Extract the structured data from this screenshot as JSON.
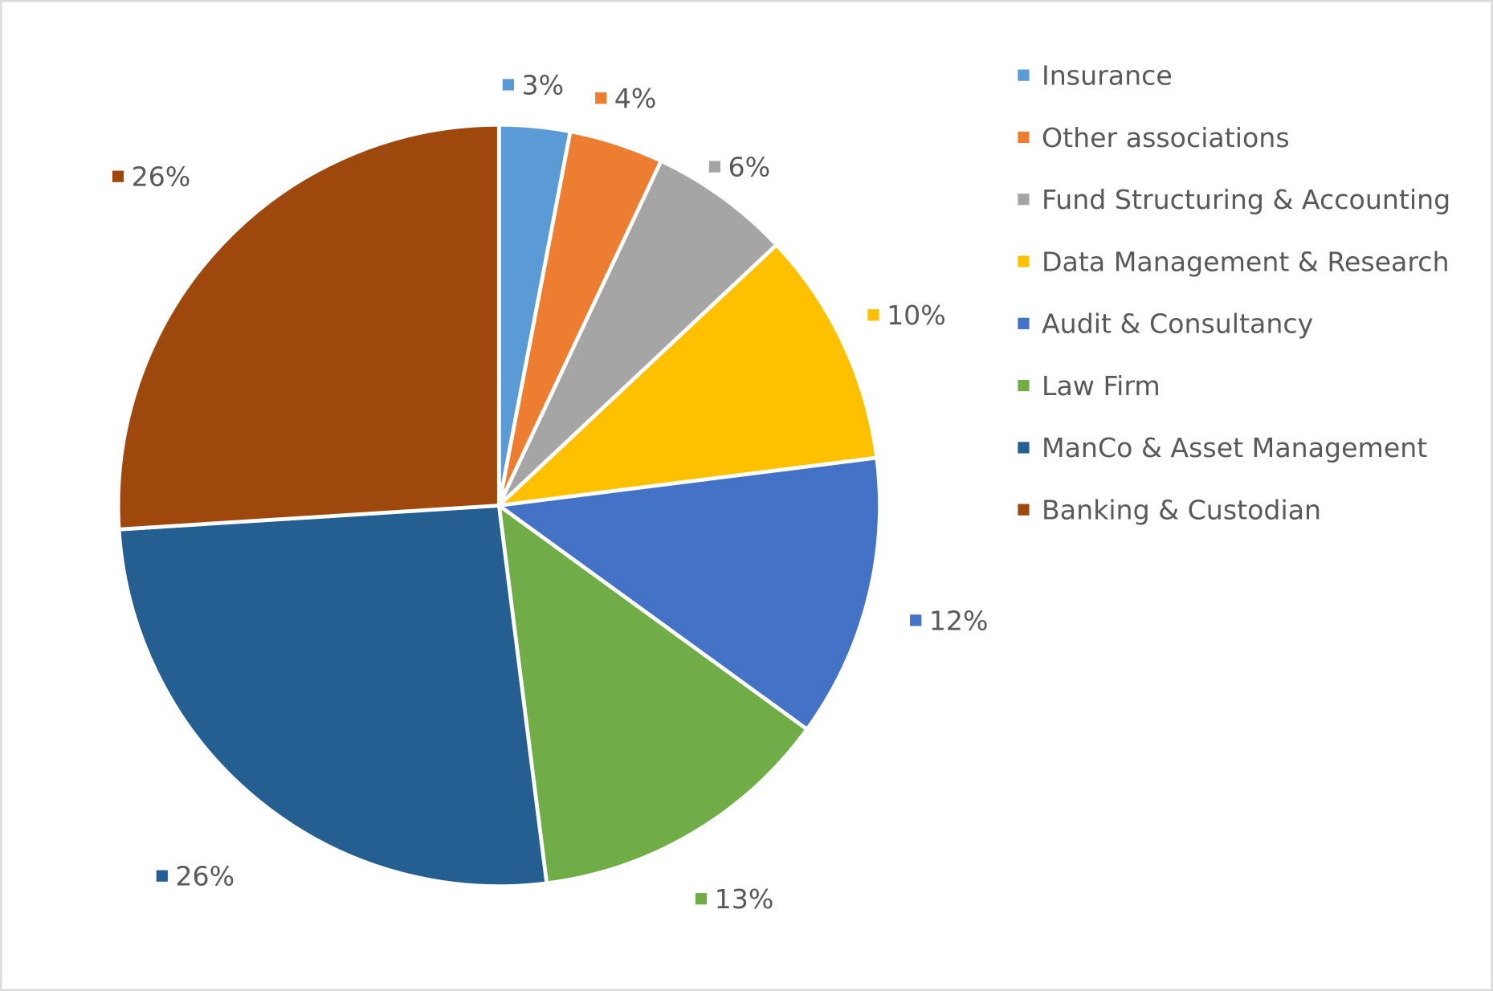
{
  "chart_data": {
    "type": "pie",
    "title": "",
    "start_angle_deg": 0,
    "direction": "clockwise",
    "legend_position": "right",
    "slices": [
      {
        "name": "Insurance",
        "value": 3,
        "label": "3%",
        "color": "#5B9BD5"
      },
      {
        "name": "Other associations",
        "value": 4,
        "label": "4%",
        "color": "#ED7D31"
      },
      {
        "name": "Fund Structuring & Accounting",
        "value": 6,
        "label": "6%",
        "color": "#A5A5A5"
      },
      {
        "name": "Data Management & Research",
        "value": 10,
        "label": "10%",
        "color": "#FFC000"
      },
      {
        "name": "Audit & Consultancy",
        "value": 12,
        "label": "12%",
        "color": "#4472C4"
      },
      {
        "name": "Law Firm",
        "value": 13,
        "label": "13%",
        "color": "#70AD47"
      },
      {
        "name": "ManCo & Asset Management",
        "value": 26,
        "label": "26%",
        "color": "#255E91"
      },
      {
        "name": "Banking & Custodian",
        "value": 26,
        "label": "26%",
        "color": "#9E480E"
      }
    ]
  }
}
